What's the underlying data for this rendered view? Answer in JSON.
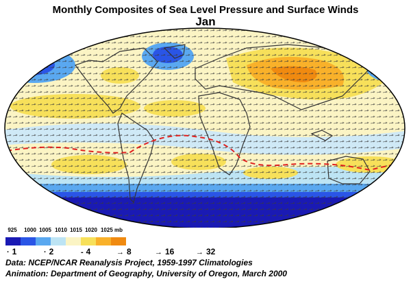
{
  "title": "Monthly Composites of Sea Level Pressure and Surface Winds",
  "subtitle": "Jan",
  "legend": {
    "pressure_labels": [
      "925",
      "1000",
      "1005",
      "1010",
      "1015",
      "1020",
      "1025 mb"
    ],
    "pressure_colors": [
      "#1a1ab4",
      "#2a55e6",
      "#5aa8f0",
      "#bde4f4",
      "#fbf4c4",
      "#f7e05a",
      "#f9b12a",
      "#f08a10"
    ]
  },
  "wind_key": [
    {
      "symbol": "·",
      "label": "1"
    },
    {
      "symbol": "·",
      "label": "2"
    },
    {
      "symbol": "-",
      "label": "4"
    },
    {
      "symbol": "→",
      "label": "8"
    },
    {
      "symbol": "→",
      "label": "16"
    },
    {
      "symbol": "→",
      "label": "32"
    }
  ],
  "footer": {
    "data_line": "Data: NCEP/NCAR Reanalysis Project, 1959-1997 Climatologies",
    "credit_line": "Animation: Department of Geography, University of Oregon, March 2000"
  },
  "colors": {
    "itcz_line": "#e0201e",
    "coastline": "#333333",
    "ocean_base": "#fbf4c4"
  }
}
